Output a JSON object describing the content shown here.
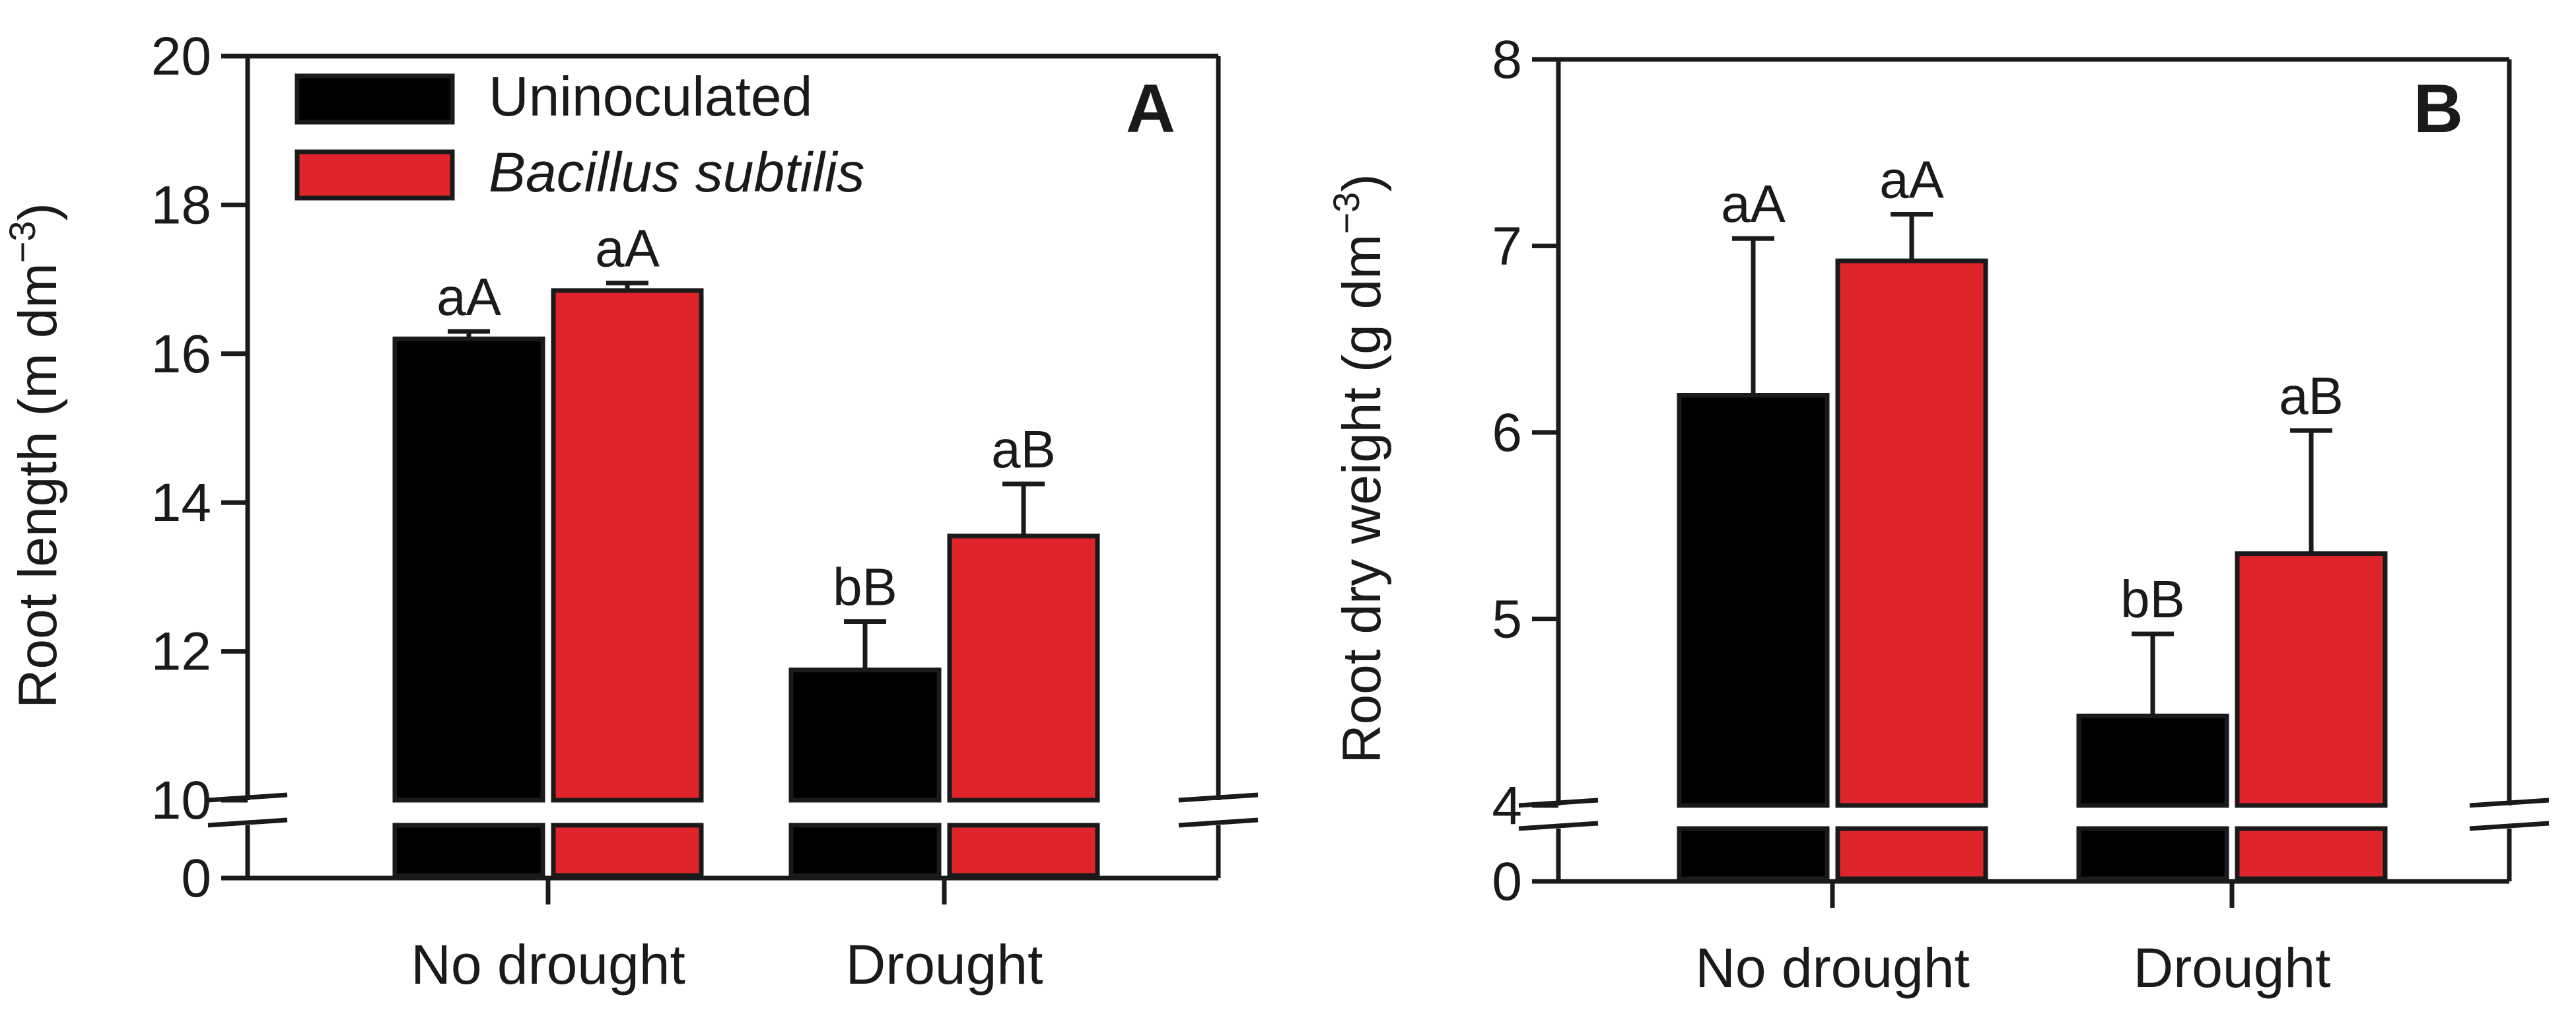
{
  "colors": {
    "uninoculated": "#000000",
    "bacillus": "#e0242b",
    "axis": "#1a1a1a"
  },
  "legend": {
    "items": [
      {
        "label": "Uninoculated",
        "color": "#000000"
      },
      {
        "label": "Bacillus subtilis",
        "color": "#e0242b",
        "italic": true
      }
    ],
    "placement": "top-left"
  },
  "chart_data": [
    {
      "type": "bar",
      "panel": "A",
      "ylabel": "Root length (m dm",
      "ylabel_superscript": "−3",
      "ylabel_close": ")",
      "y_break": {
        "lower_ticks": [
          0
        ],
        "upper_ticks": [
          10,
          12,
          14,
          16,
          18,
          20
        ],
        "ylim": [
          10,
          20
        ]
      },
      "categories": [
        "No drought",
        "Drought"
      ],
      "series": [
        {
          "name": "Uninoculated",
          "values": [
            16.2,
            11.75
          ],
          "errors": [
            0.1,
            0.65
          ],
          "sig": [
            "aA",
            "bB"
          ]
        },
        {
          "name": "Bacillus subtilis",
          "values": [
            16.85,
            13.55
          ],
          "errors": [
            0.1,
            0.7
          ],
          "sig": [
            "aA",
            "aB"
          ]
        }
      ],
      "tick_labels": [
        "0",
        "10",
        "12",
        "14",
        "16",
        "18",
        "20"
      ]
    },
    {
      "type": "bar",
      "panel": "B",
      "ylabel": "Root dry weight (g dm",
      "ylabel_superscript": "−3",
      "ylabel_close": ")",
      "y_break": {
        "lower_ticks": [
          0
        ],
        "upper_ticks": [
          4,
          5,
          6,
          7,
          8
        ],
        "ylim": [
          4,
          8
        ]
      },
      "categories": [
        "No drought",
        "Drought"
      ],
      "series": [
        {
          "name": "Uninoculated",
          "values": [
            6.2,
            4.48
          ],
          "errors": [
            0.84,
            0.44
          ],
          "sig": [
            "aA",
            "bB"
          ]
        },
        {
          "name": "Bacillus subtilis",
          "values": [
            6.92,
            5.35
          ],
          "errors": [
            0.25,
            0.66
          ],
          "sig": [
            "aA",
            "aB"
          ]
        }
      ],
      "tick_labels": [
        "0",
        "4",
        "5",
        "6",
        "7",
        "8"
      ]
    }
  ]
}
